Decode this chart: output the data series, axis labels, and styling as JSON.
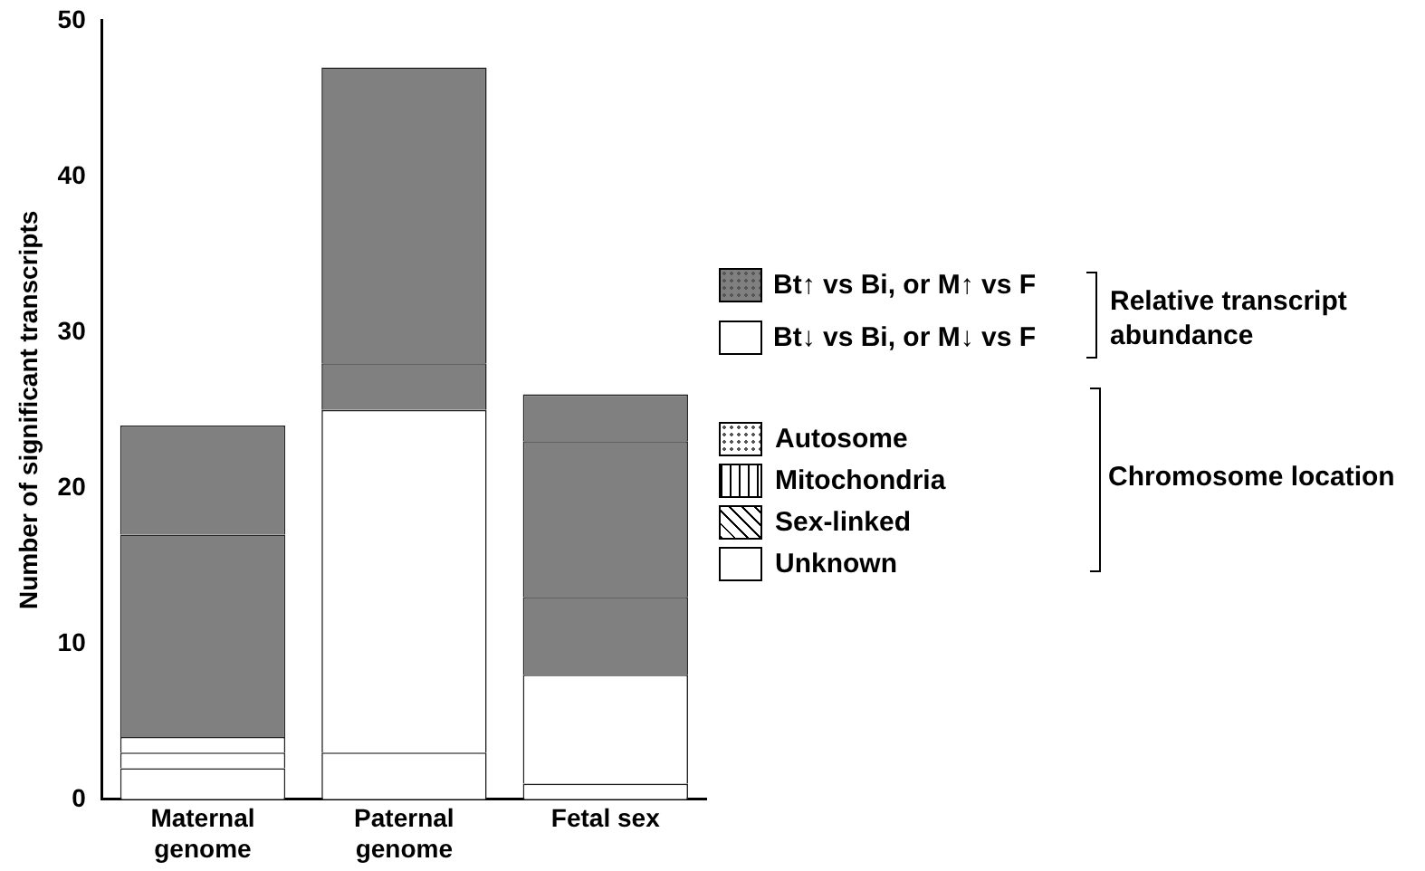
{
  "chart_data": {
    "type": "bar",
    "stacked": true,
    "ylabel": "Number of significant transcripts",
    "categories": [
      "Maternal genome",
      "Paternal genome",
      "Fetal sex"
    ],
    "series": [
      {
        "color": "#ffffff",
        "values": [
          2,
          3,
          1
        ]
      },
      {
        "color": "#ffffff",
        "values": [
          1,
          0,
          7
        ]
      },
      {
        "color": "#ffffff",
        "values": [
          1,
          22,
          0
        ]
      },
      {
        "color": "#808080",
        "values": [
          0,
          3,
          5
        ]
      },
      {
        "color": "#808080",
        "values": [
          0,
          0,
          10
        ]
      },
      {
        "color": "#808080",
        "values": [
          13,
          0,
          0
        ]
      },
      {
        "color": "#808080",
        "values": [
          7,
          19,
          3
        ]
      }
    ],
    "ylim": [
      0,
      50
    ],
    "yticks": [
      0,
      10,
      20,
      30,
      40,
      50
    ],
    "grid": false,
    "legend": false,
    "annotations": [
      "Bt↑ vs Bi, or M↑ vs F",
      "Bt↓ vs Bi, or M↓ vs F",
      "Relative transcript abundance",
      "Autosome",
      "Mitochondria",
      "Sex-linked",
      "Unknown",
      "Chromosome location"
    ]
  }
}
